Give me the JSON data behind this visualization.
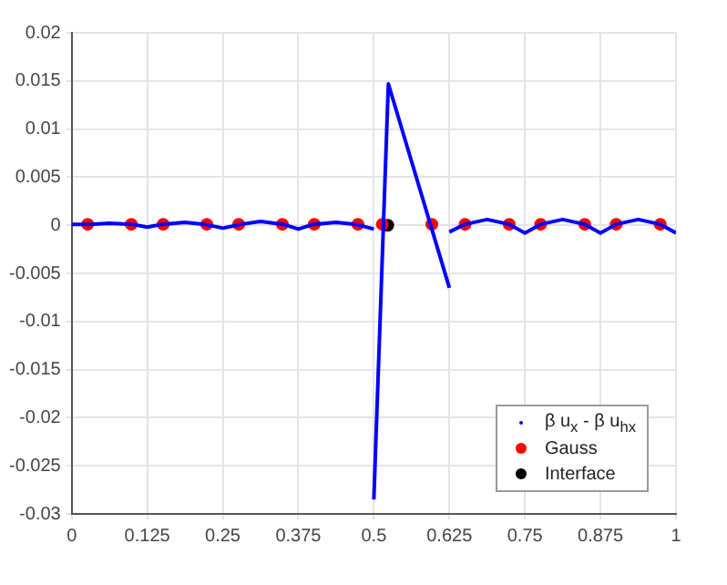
{
  "chart_data": {
    "type": "line",
    "xlim": [
      0,
      1
    ],
    "ylim": [
      -0.03,
      0.02
    ],
    "xticks": [
      0,
      0.125,
      0.25,
      0.375,
      0.5,
      0.625,
      0.75,
      0.875,
      1
    ],
    "yticks": [
      -0.03,
      -0.025,
      -0.02,
      -0.015,
      -0.01,
      -0.005,
      0,
      0.005,
      0.01,
      0.015,
      0.02
    ],
    "grid": true,
    "legend": "bottom right",
    "series": [
      {
        "name": "β u$_{x}$ - β u$_{hx}$",
        "marker": "none",
        "color": "#0000ff",
        "x": [
          0,
          0.03,
          0.0625,
          0.1,
          0.125,
          0.15,
          0.1875,
          0.22,
          0.25,
          0.28,
          0.3125,
          0.35,
          0.375,
          0.4,
          0.4375,
          0.47,
          0.5,
          null,
          0.5,
          0.524,
          0.625,
          null,
          0.625,
          0.651,
          0.6875,
          0.724,
          0.75,
          0.776,
          0.8125,
          0.849,
          0.875,
          0.901,
          0.9375,
          0.974,
          1
        ],
        "values": [
          0.0001,
          0.0001,
          0.0002,
          0.0001,
          -0.0002,
          0.0001,
          0.0003,
          0.0001,
          -0.0003,
          0.0001,
          0.0004,
          0.0001,
          -0.0004,
          0.0001,
          0.0003,
          0.0001,
          -0.0004,
          null,
          -0.0285,
          0.0147,
          -0.0065,
          null,
          -0.0007,
          0.0001,
          0.0006,
          0.0001,
          -0.0008,
          0.0001,
          0.0006,
          0.0001,
          -0.0008,
          0.0001,
          0.0006,
          0.0001,
          -0.0008
        ]
      },
      {
        "name": "Gauss",
        "type": "scatter",
        "marker": "circle",
        "color": "#ff0000",
        "x": [
          0.0264,
          0.0986,
          0.1514,
          0.2236,
          0.2764,
          0.3486,
          0.4014,
          0.4736,
          0.514,
          0.596,
          0.651,
          0.724,
          0.776,
          0.849,
          0.901,
          0.974
        ],
        "values": [
          0.0001,
          0.0001,
          0.0001,
          0.0001,
          0.0001,
          0.0001,
          0.0001,
          0.0001,
          0.0001,
          0.0001,
          0.0001,
          0.0001,
          0.0001,
          0.0001,
          0.0001,
          0.0001
        ]
      },
      {
        "name": "Interface",
        "type": "scatter",
        "marker": "circle",
        "color": "#000000",
        "x": [
          0.523
        ],
        "values": [
          0
        ]
      }
    ]
  }
}
